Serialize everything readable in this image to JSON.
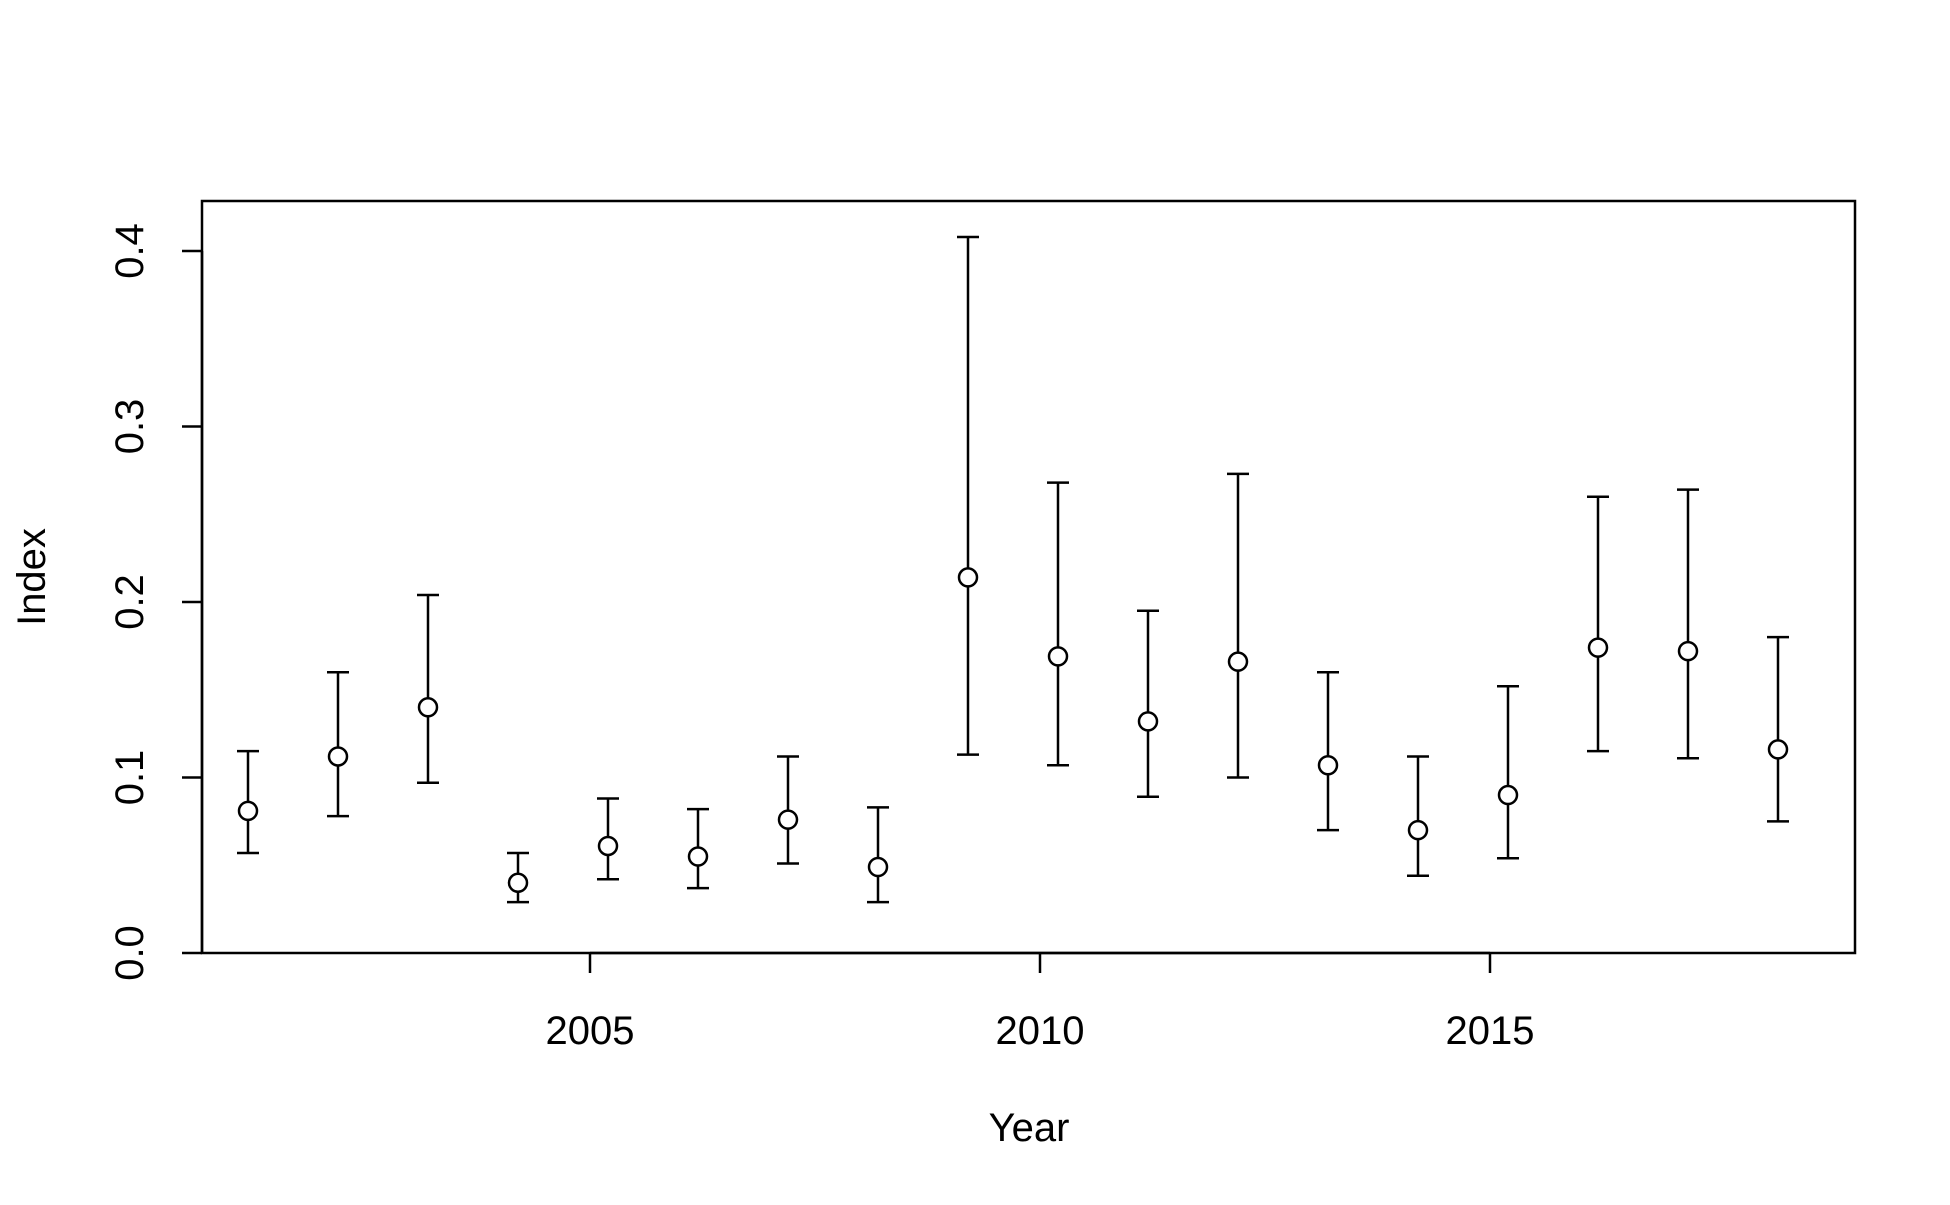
{
  "chart_data": {
    "type": "scatter",
    "title": "",
    "xlabel": "Year",
    "ylabel": "Index",
    "xlim": [
      2000.5,
      2018.8
    ],
    "ylim": [
      0.0,
      0.43
    ],
    "x_ticks": [
      2005,
      2010,
      2015
    ],
    "x_tick_labels": [
      "2005",
      "2010",
      "2015"
    ],
    "y_ticks": [
      0.0,
      0.1,
      0.2,
      0.3,
      0.4
    ],
    "y_tick_labels": [
      "0.0",
      "0.1",
      "0.2",
      "0.3",
      "0.4"
    ],
    "grid": false,
    "legend": "none",
    "marker": "open-circle",
    "error_bars": true,
    "colors": {
      "line": "#000000",
      "marker_fill": "#ffffff"
    },
    "points": [
      {
        "x": 2001.2,
        "y": 0.081,
        "lower": 0.057,
        "upper": 0.115
      },
      {
        "x": 2002.2,
        "y": 0.112,
        "lower": 0.078,
        "upper": 0.16
      },
      {
        "x": 2003.2,
        "y": 0.14,
        "lower": 0.097,
        "upper": 0.204
      },
      {
        "x": 2004.2,
        "y": 0.04,
        "lower": 0.029,
        "upper": 0.057
      },
      {
        "x": 2005.2,
        "y": 0.061,
        "lower": 0.042,
        "upper": 0.088
      },
      {
        "x": 2006.2,
        "y": 0.055,
        "lower": 0.037,
        "upper": 0.082
      },
      {
        "x": 2007.2,
        "y": 0.076,
        "lower": 0.051,
        "upper": 0.112
      },
      {
        "x": 2008.2,
        "y": 0.049,
        "lower": 0.029,
        "upper": 0.083
      },
      {
        "x": 2009.2,
        "y": 0.214,
        "lower": 0.113,
        "upper": 0.408
      },
      {
        "x": 2010.2,
        "y": 0.169,
        "lower": 0.107,
        "upper": 0.268
      },
      {
        "x": 2011.2,
        "y": 0.132,
        "lower": 0.089,
        "upper": 0.195
      },
      {
        "x": 2012.2,
        "y": 0.166,
        "lower": 0.1,
        "upper": 0.273
      },
      {
        "x": 2013.2,
        "y": 0.107,
        "lower": 0.07,
        "upper": 0.16
      },
      {
        "x": 2014.2,
        "y": 0.07,
        "lower": 0.044,
        "upper": 0.112
      },
      {
        "x": 2015.2,
        "y": 0.09,
        "lower": 0.054,
        "upper": 0.152
      },
      {
        "x": 2016.2,
        "y": 0.174,
        "lower": 0.115,
        "upper": 0.26
      },
      {
        "x": 2017.2,
        "y": 0.172,
        "lower": 0.111,
        "upper": 0.264
      },
      {
        "x": 2018.2,
        "y": 0.116,
        "lower": 0.075,
        "upper": 0.18
      }
    ]
  }
}
